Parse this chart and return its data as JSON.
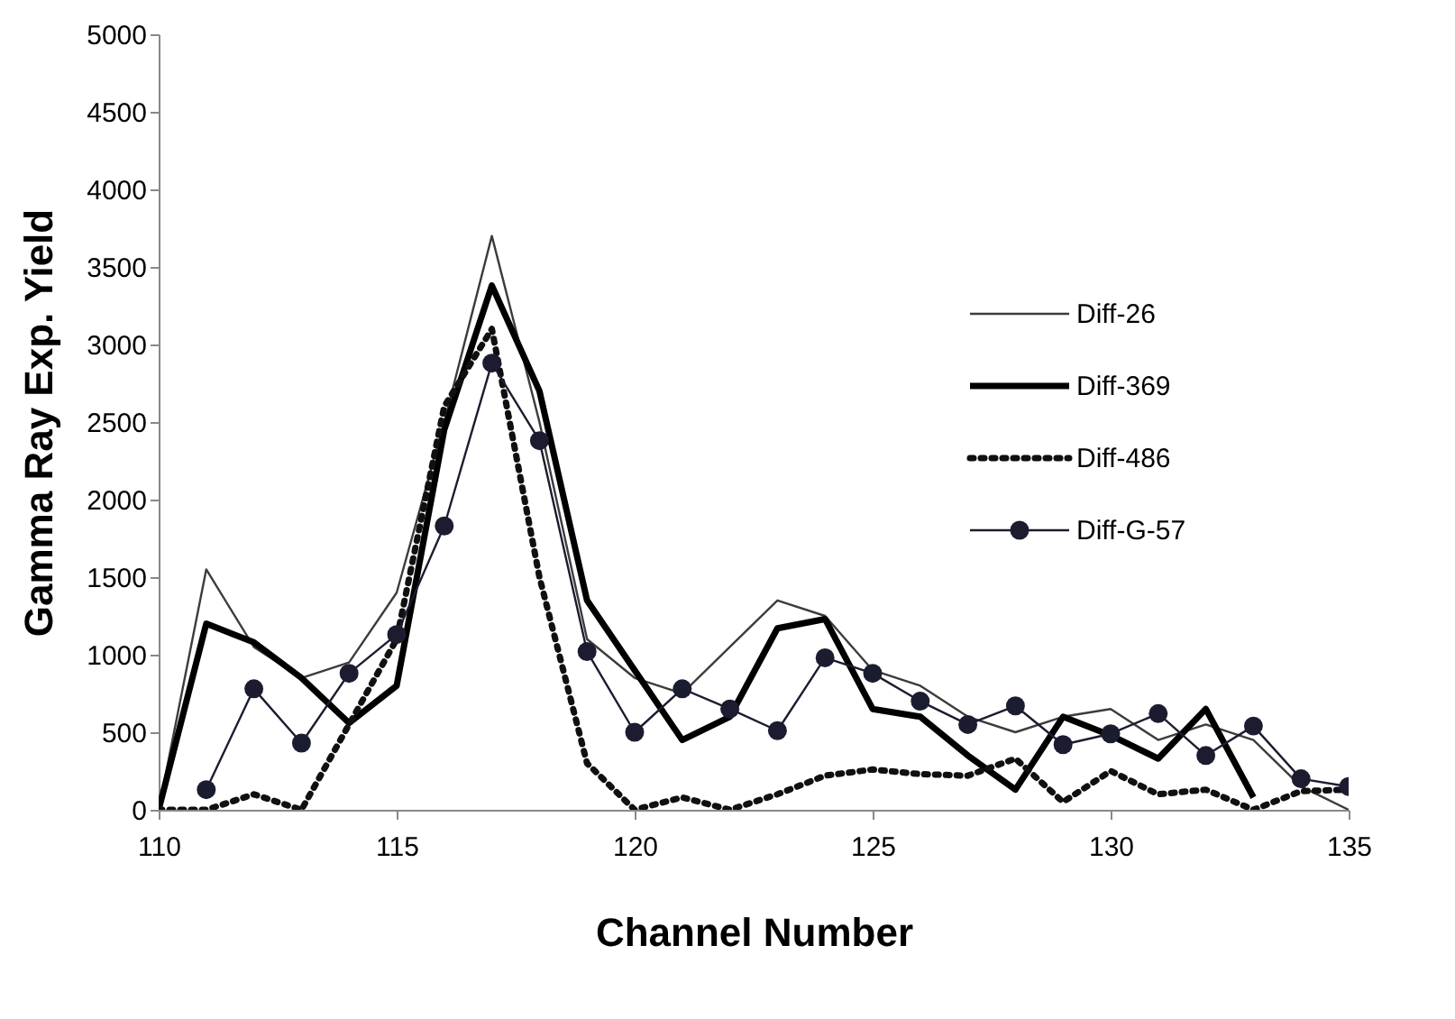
{
  "chart_data": {
    "type": "line",
    "xlabel": "Channel Number",
    "ylabel": "Gamma Ray Exp. Yield",
    "xlim": [
      110,
      135
    ],
    "xticks": [
      110,
      115,
      120,
      125,
      130,
      135
    ],
    "ylim": [
      0,
      5000
    ],
    "yticks": [
      0,
      500,
      1000,
      1500,
      2000,
      2500,
      3000,
      3500,
      4000,
      4500,
      5000
    ],
    "grid": false,
    "legend": "right",
    "series": [
      {
        "name": "Diff-26",
        "color": "#3c3c3c",
        "line_style": "solid",
        "marker": "none",
        "x": [
          110,
          111,
          112,
          113,
          114,
          115,
          116,
          117,
          118,
          119,
          120,
          121,
          122,
          123,
          124,
          125,
          126,
          127,
          128,
          129,
          130,
          131,
          132,
          133,
          134,
          135
        ],
        "values": [
          0,
          1550,
          1050,
          850,
          950,
          1400,
          2500,
          3700,
          2500,
          1100,
          850,
          750,
          1050,
          1350,
          1250,
          900,
          800,
          600,
          500,
          600,
          650,
          450,
          550,
          450,
          150,
          0
        ]
      },
      {
        "name": "Diff-369",
        "color": "#000000",
        "line_style": "solid",
        "marker": "none",
        "x": [
          110,
          111,
          112,
          113,
          114,
          115,
          116,
          117,
          118,
          119,
          120,
          121,
          122,
          123,
          124,
          125,
          126,
          127,
          128,
          129,
          130,
          131,
          132,
          133
        ],
        "values": [
          0,
          1200,
          1080,
          850,
          560,
          800,
          2450,
          3380,
          2700,
          1350,
          900,
          450,
          600,
          1170,
          1230,
          650,
          600,
          350,
          130,
          600,
          480,
          330,
          650,
          80
        ]
      },
      {
        "name": "Diff-486",
        "color": "#101010",
        "line_style": "dotted",
        "marker": "none",
        "x": [
          110,
          111,
          112,
          113,
          114,
          115,
          116,
          117,
          118,
          119,
          120,
          121,
          122,
          123,
          124,
          125,
          126,
          127,
          128,
          129,
          130,
          131,
          132,
          133,
          134,
          135
        ],
        "values": [
          0,
          0,
          100,
          0,
          550,
          1100,
          2600,
          3100,
          1500,
          300,
          0,
          80,
          0,
          100,
          220,
          260,
          230,
          220,
          330,
          50,
          250,
          100,
          130,
          0,
          120,
          130
        ]
      },
      {
        "name": "Diff-G-57",
        "color": "#1c1c30",
        "line_style": "solid",
        "marker": "circle",
        "x": [
          111,
          112,
          113,
          114,
          115,
          116,
          117,
          118,
          119,
          120,
          121,
          122,
          123,
          124,
          125,
          126,
          127,
          128,
          129,
          130,
          131,
          132,
          133,
          134,
          135
        ],
        "values": [
          130,
          780,
          430,
          880,
          1130,
          1830,
          2880,
          2380,
          1020,
          500,
          780,
          650,
          510,
          980,
          880,
          700,
          550,
          670,
          420,
          490,
          620,
          350,
          540,
          200,
          150
        ]
      }
    ]
  }
}
